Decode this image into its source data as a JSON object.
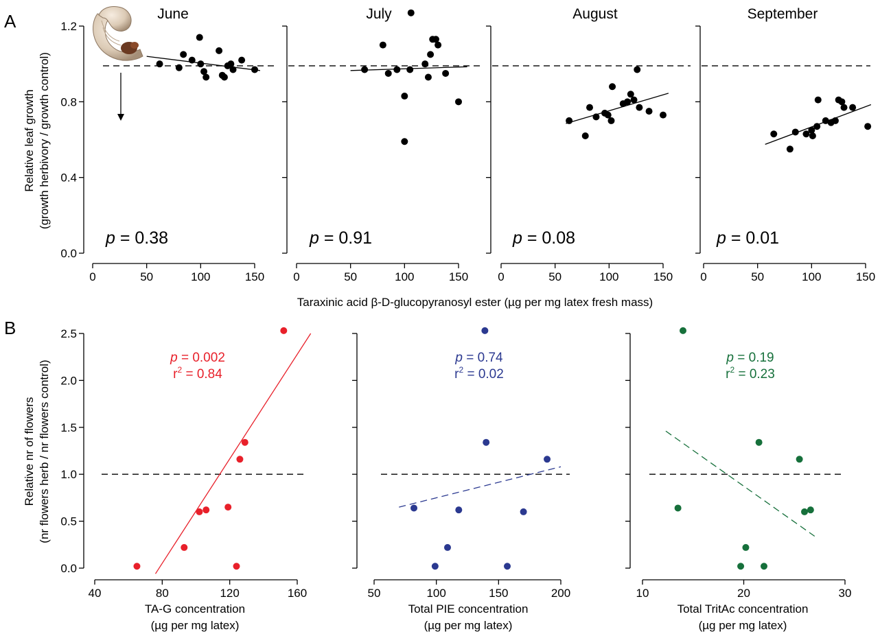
{
  "figure": {
    "panel_a_label": "A",
    "panel_b_label": "B",
    "panel_a_ylabel_line1": "Relative leaf growth",
    "panel_a_ylabel_line2": "(growth herbivory / growth control)",
    "panel_a_xlabel": "Taraxinic acid β-D-glucopyranosyl ester (µg per mg latex fresh mass)",
    "panel_b_ylabel_line1": "Relative nr of flowers",
    "panel_b_ylabel_line2": "(nr flowers herb / nr flowers control)"
  },
  "colors": {
    "black": "#000000",
    "red": "#e8202a",
    "blue": "#2b3990",
    "green": "#16703b"
  },
  "chart_data": [
    {
      "type": "scatter",
      "id": "june",
      "title": "June",
      "x_ticks": [
        0,
        50,
        100,
        150
      ],
      "y_ticks": [
        0.0,
        0.4,
        0.8,
        1.2
      ],
      "y_tick_labels": [
        "0.0",
        "0.4",
        "0.8",
        "1.2"
      ],
      "xlim": [
        -5,
        160
      ],
      "ylim": [
        -0.03,
        1.2
      ],
      "reference_y": 0.99,
      "annotation": {
        "p_prefix": "p",
        "p_rest": " = 0.38"
      },
      "points": [
        [
          62,
          1.0
        ],
        [
          80,
          0.98
        ],
        [
          84,
          1.05
        ],
        [
          92,
          1.02
        ],
        [
          99,
          1.14
        ],
        [
          100,
          1.0
        ],
        [
          103,
          0.96
        ],
        [
          105,
          0.93
        ],
        [
          117,
          1.07
        ],
        [
          120,
          0.94
        ],
        [
          122,
          0.93
        ],
        [
          125,
          0.99
        ],
        [
          128,
          1.0
        ],
        [
          130,
          0.97
        ],
        [
          138,
          1.02
        ],
        [
          150,
          0.97
        ]
      ],
      "trend": {
        "x": [
          50,
          155
        ],
        "y": [
          1.04,
          0.965
        ],
        "style": "solid"
      },
      "has_larva_picture": true
    },
    {
      "type": "scatter",
      "id": "july",
      "title": "July",
      "x_ticks": [
        0,
        50,
        100,
        150
      ],
      "y_ticks": [
        0.0,
        0.4,
        0.8,
        1.2
      ],
      "xlim": [
        -5,
        160
      ],
      "ylim": [
        -0.03,
        1.2
      ],
      "reference_y": 0.99,
      "annotation": {
        "p_prefix": "p",
        "p_rest": " = 0.91"
      },
      "points": [
        [
          63,
          0.97
        ],
        [
          80,
          1.1
        ],
        [
          85,
          0.95
        ],
        [
          93,
          0.97
        ],
        [
          100,
          0.83
        ],
        [
          100,
          0.59
        ],
        [
          105,
          0.97
        ],
        [
          106,
          1.27
        ],
        [
          119,
          1.0
        ],
        [
          122,
          0.93
        ],
        [
          124,
          1.05
        ],
        [
          126,
          1.13
        ],
        [
          129,
          1.13
        ],
        [
          131,
          1.1
        ],
        [
          138,
          0.95
        ],
        [
          150,
          0.8
        ]
      ],
      "trend": {
        "x": [
          50,
          158
        ],
        "y": [
          0.965,
          0.985
        ],
        "style": "solid"
      }
    },
    {
      "type": "scatter",
      "id": "august",
      "title": "August",
      "x_ticks": [
        0,
        50,
        100,
        150
      ],
      "y_ticks": [
        0.0,
        0.4,
        0.8,
        1.2
      ],
      "xlim": [
        -5,
        160
      ],
      "ylim": [
        -0.03,
        1.2
      ],
      "reference_y": 0.99,
      "annotation": {
        "p_prefix": "p",
        "p_rest": " = 0.08"
      },
      "points": [
        [
          63,
          0.7
        ],
        [
          78,
          0.62
        ],
        [
          82,
          0.77
        ],
        [
          88,
          0.72
        ],
        [
          96,
          0.74
        ],
        [
          99,
          0.73
        ],
        [
          102,
          0.7
        ],
        [
          103,
          0.88
        ],
        [
          113,
          0.79
        ],
        [
          117,
          0.8
        ],
        [
          120,
          0.84
        ],
        [
          123,
          0.81
        ],
        [
          126,
          0.97
        ],
        [
          128,
          0.77
        ],
        [
          137,
          0.75
        ],
        [
          150,
          0.73
        ]
      ],
      "trend": {
        "x": [
          60,
          155
        ],
        "y": [
          0.685,
          0.845
        ],
        "style": "solid"
      }
    },
    {
      "type": "scatter",
      "id": "september",
      "title": "September",
      "x_ticks": [
        0,
        50,
        100,
        150
      ],
      "y_ticks": [
        0.0,
        0.4,
        0.8,
        1.2
      ],
      "xlim": [
        -5,
        160
      ],
      "ylim": [
        -0.03,
        1.2
      ],
      "reference_y": 0.99,
      "annotation": {
        "p_prefix": "p",
        "p_rest": " = 0.01"
      },
      "points": [
        [
          65,
          0.63
        ],
        [
          80,
          0.55
        ],
        [
          85,
          0.64
        ],
        [
          95,
          0.63
        ],
        [
          100,
          0.65
        ],
        [
          101,
          0.62
        ],
        [
          105,
          0.67
        ],
        [
          106,
          0.81
        ],
        [
          113,
          0.7
        ],
        [
          118,
          0.69
        ],
        [
          122,
          0.7
        ],
        [
          125,
          0.81
        ],
        [
          128,
          0.8
        ],
        [
          130,
          0.77
        ],
        [
          138,
          0.77
        ],
        [
          152,
          0.67
        ]
      ],
      "trend": {
        "x": [
          57,
          155
        ],
        "y": [
          0.575,
          0.785
        ],
        "style": "solid"
      }
    },
    {
      "type": "scatter",
      "id": "tag",
      "color_key": "red",
      "xlabel_line1": "TA-G concentration",
      "xlabel_line2": "(µg per mg latex)",
      "x_ticks": [
        40,
        80,
        120,
        160
      ],
      "y_ticks": [
        0.0,
        0.5,
        1.0,
        1.5,
        2.0,
        2.5
      ],
      "y_tick_labels": [
        "0.0",
        "0.5",
        "1.0",
        "1.5",
        "2.0",
        "2.5"
      ],
      "xlim": [
        36,
        170
      ],
      "ylim": [
        -0.05,
        2.6
      ],
      "reference_y": 1.0,
      "annotation": {
        "p_prefix": "p",
        "p_rest": " = 0.002",
        "r_prefix": "r",
        "r_sup": "2",
        "r_rest": " = 0.84"
      },
      "points": [
        [
          65,
          0.02
        ],
        [
          93,
          0.22
        ],
        [
          102,
          0.6
        ],
        [
          106,
          0.62
        ],
        [
          119,
          0.65
        ],
        [
          124,
          0.02
        ],
        [
          126,
          1.16
        ],
        [
          129,
          1.34
        ],
        [
          152,
          2.53
        ]
      ],
      "trend": {
        "x": [
          76,
          168
        ],
        "y": [
          -0.06,
          2.5
        ],
        "style": "solid"
      }
    },
    {
      "type": "scatter",
      "id": "pie",
      "color_key": "blue",
      "xlabel_line1": "Total PIE concentration",
      "xlabel_line2": "(µg per mg latex)",
      "x_ticks": [
        50,
        100,
        150,
        200
      ],
      "y_ticks": [
        0.0,
        0.5,
        1.0,
        1.5,
        2.0,
        2.5
      ],
      "xlim": [
        45,
        206
      ],
      "ylim": [
        -0.05,
        2.6
      ],
      "reference_y": 1.0,
      "annotation": {
        "p_prefix": "p",
        "p_rest": " = 0.74",
        "r_prefix": "r",
        "r_sup": "2",
        "r_rest": " = 0.02"
      },
      "points": [
        [
          82,
          0.64
        ],
        [
          99,
          0.02
        ],
        [
          109,
          0.22
        ],
        [
          118,
          0.62
        ],
        [
          139,
          2.53
        ],
        [
          140,
          1.34
        ],
        [
          157,
          0.02
        ],
        [
          170,
          0.6
        ],
        [
          189,
          1.16
        ]
      ],
      "trend": {
        "x": [
          70,
          200
        ],
        "y": [
          0.65,
          1.08
        ],
        "style": "dashed"
      }
    },
    {
      "type": "scatter",
      "id": "tritac",
      "color_key": "green",
      "xlabel_line1": "Total TritAc concentration",
      "xlabel_line2": "(µg per mg latex)",
      "x_ticks": [
        10,
        20,
        30
      ],
      "y_ticks": [
        0.0,
        0.5,
        1.0,
        1.5,
        2.0,
        2.5
      ],
      "xlim": [
        9.5,
        31.5
      ],
      "ylim": [
        -0.05,
        2.6
      ],
      "reference_y": 1.0,
      "annotation": {
        "p_prefix": "p",
        "p_rest": " = 0.19",
        "r_prefix": "r",
        "r_sup": "2",
        "r_rest": " = 0.23"
      },
      "points": [
        [
          13.5,
          0.64
        ],
        [
          14,
          2.53
        ],
        [
          19.7,
          0.02
        ],
        [
          20.2,
          0.22
        ],
        [
          21.5,
          1.34
        ],
        [
          22,
          0.02
        ],
        [
          25.5,
          1.16
        ],
        [
          26,
          0.6
        ],
        [
          26.6,
          0.62
        ]
      ],
      "trend": {
        "x": [
          12.3,
          27
        ],
        "y": [
          1.46,
          0.34
        ],
        "style": "dashed"
      }
    }
  ]
}
